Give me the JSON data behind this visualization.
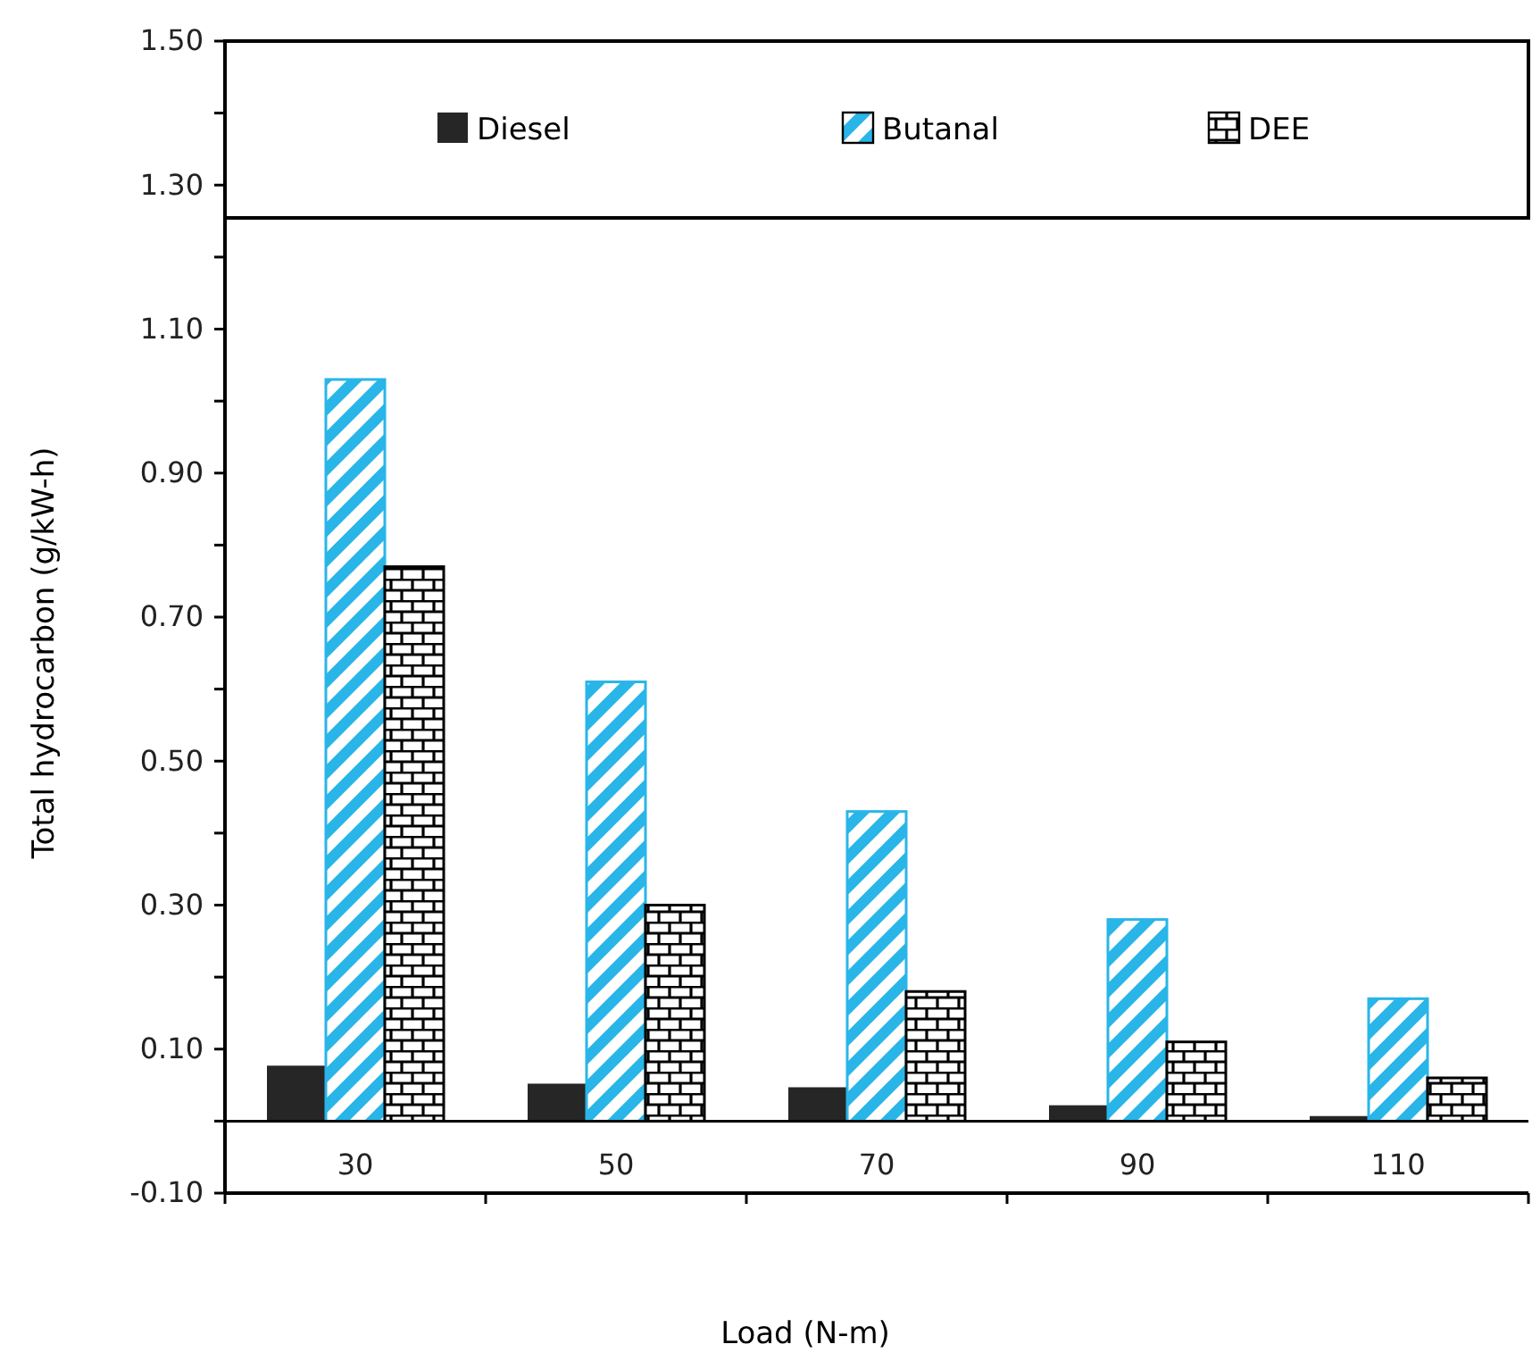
{
  "chart_data": {
    "type": "bar",
    "xlabel": "Load (N-m)",
    "ylabel": "Total hydrocarbon (g/kW-h)",
    "categories": [
      "30",
      "50",
      "70",
      "90",
      "110"
    ],
    "series": [
      {
        "name": "Diesel",
        "color": "#262626",
        "values": [
          0.077,
          0.052,
          0.047,
          0.022,
          0.007
        ]
      },
      {
        "name": "Butanal",
        "color": "#29b5e8",
        "values": [
          1.03,
          0.61,
          0.43,
          0.28,
          0.17
        ]
      },
      {
        "name": "DEE",
        "color": "#000000",
        "values": [
          0.77,
          0.3,
          0.18,
          0.11,
          0.06
        ]
      }
    ],
    "ylim": [
      -0.1,
      1.5
    ],
    "yticks": [
      {
        "value": -0.1,
        "label": "-0.10"
      },
      {
        "value": 0.1,
        "label": "0.10"
      },
      {
        "value": 0.3,
        "label": "0.30"
      },
      {
        "value": 0.5,
        "label": "0.50"
      },
      {
        "value": 0.7,
        "label": "0.70"
      },
      {
        "value": 0.9,
        "label": "0.90"
      },
      {
        "value": 1.1,
        "label": "1.10"
      },
      {
        "value": 1.3,
        "label": "1.30"
      },
      {
        "value": 1.5,
        "label": "1.50"
      }
    ],
    "grid": false,
    "legend": "top"
  }
}
